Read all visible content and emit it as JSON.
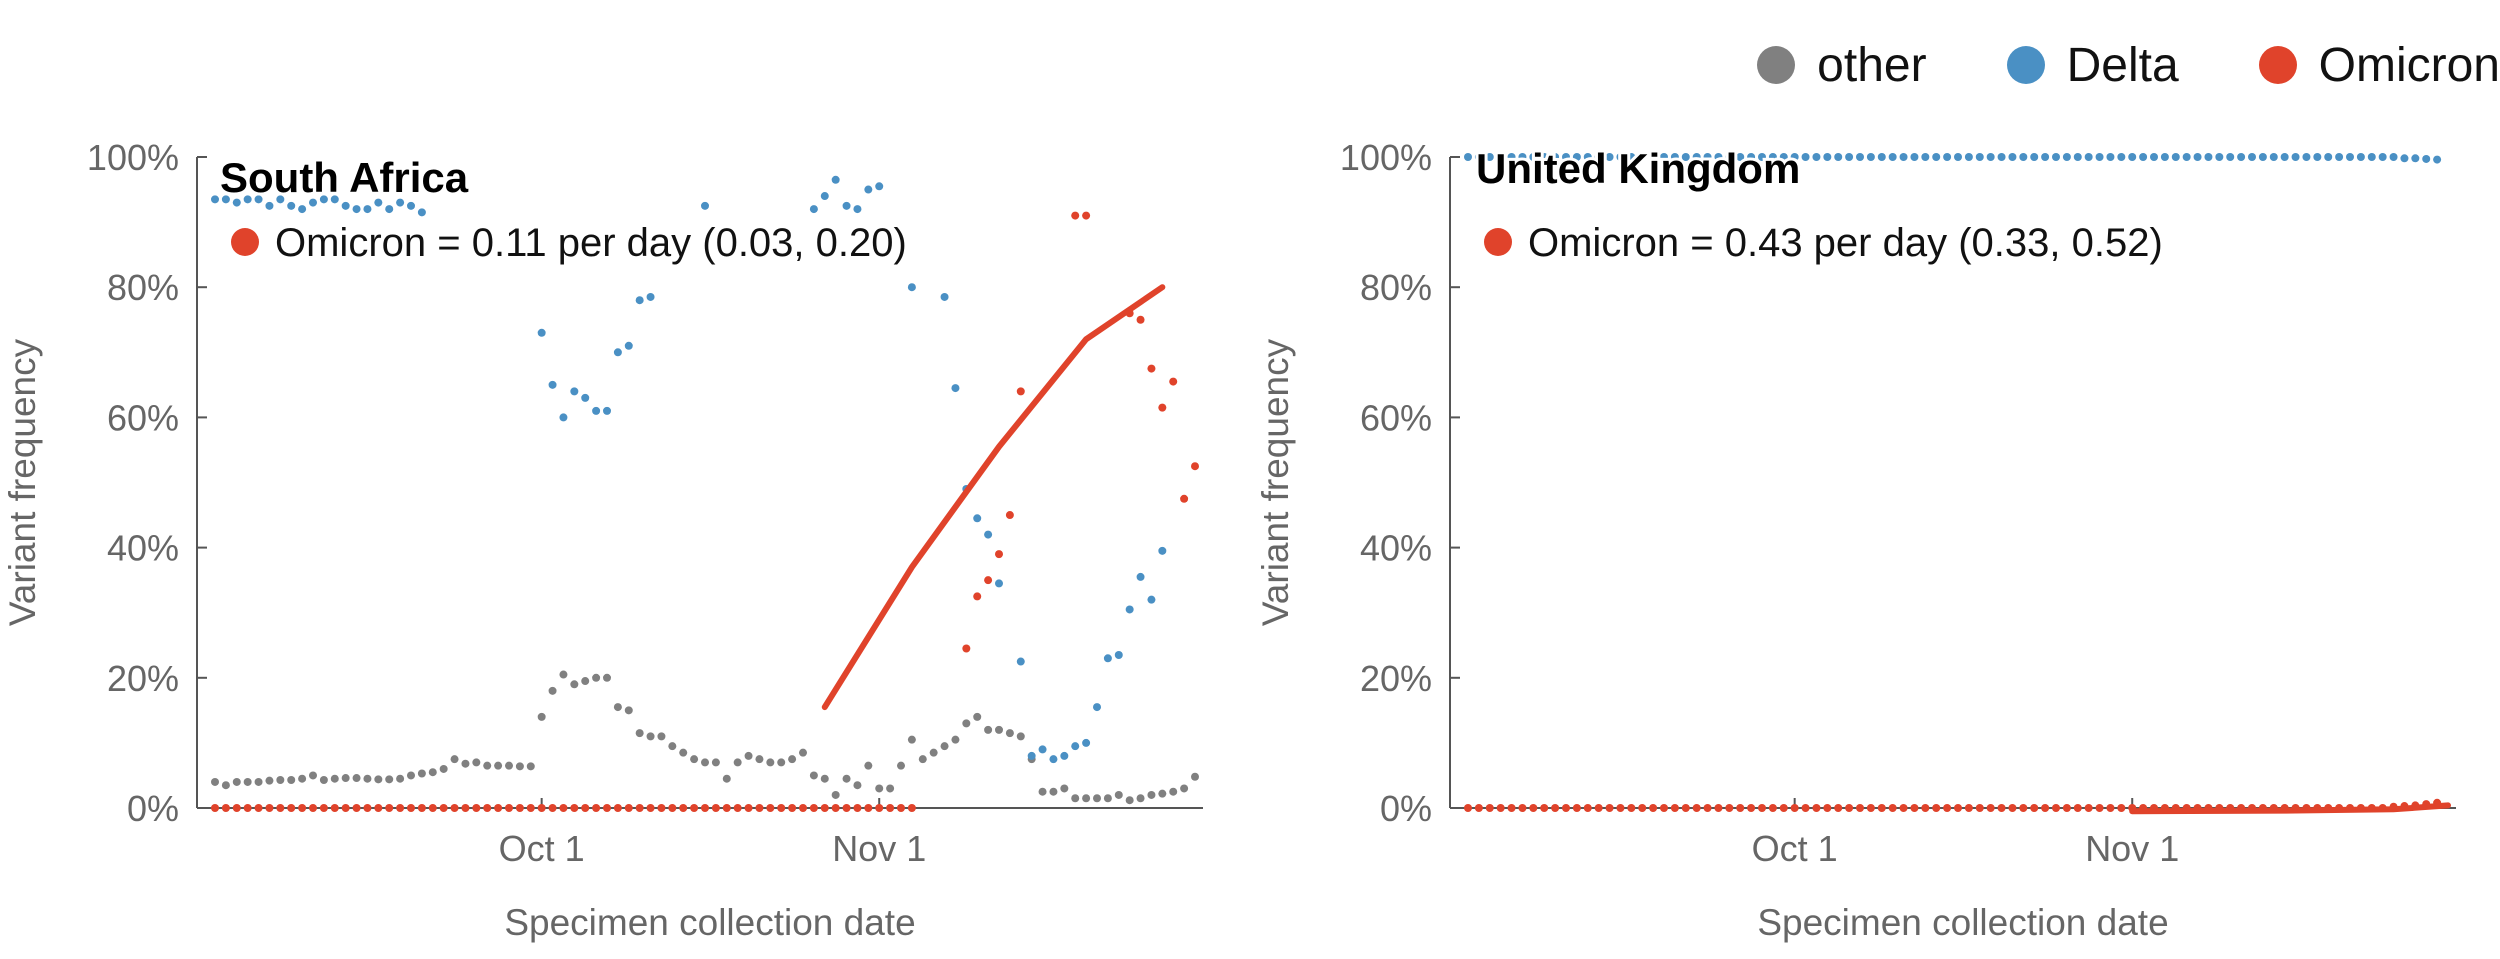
{
  "legend": {
    "items": [
      {
        "label": "other",
        "color": "#808080"
      },
      {
        "label": "Delta",
        "color": "#4a90c4"
      },
      {
        "label": "Omicron",
        "color": "#e0432b"
      }
    ]
  },
  "colors": {
    "other": "#808080",
    "Delta": "#4a90c4",
    "Omicron": "#e0432b",
    "axis": "#555555",
    "tick_label": "#666666"
  },
  "chart_data": [
    {
      "type": "scatter",
      "title": "South Africa",
      "annotation": "Omicron = 0.11 per day (0.03, 0.20)",
      "xlabel": "Specimen collection date",
      "ylabel": "Variant frequency",
      "xlim": [
        "2021-09-01",
        "2021-11-30"
      ],
      "ylim": [
        0,
        1
      ],
      "yticks": [
        0,
        0.2,
        0.4,
        0.6,
        0.8,
        1.0
      ],
      "ytick_labels": [
        "0%",
        "20%",
        "40%",
        "60%",
        "80%",
        "100%"
      ],
      "xticks": [
        "2021-10-01",
        "2021-11-01"
      ],
      "xtick_labels": [
        "Oct 1",
        "Nov 1"
      ],
      "grid": false,
      "x_start": "2021-09-01",
      "series": [
        {
          "name": "other",
          "values": [
            0.04,
            0.035,
            0.04,
            0.04,
            0.04,
            0.042,
            0.043,
            0.043,
            0.045,
            0.05,
            0.043,
            0.045,
            0.046,
            0.046,
            0.045,
            0.044,
            0.044,
            0.045,
            0.05,
            0.053,
            0.055,
            0.06,
            0.075,
            0.068,
            0.07,
            0.065,
            0.065,
            0.065,
            0.064,
            0.064,
            0.14,
            0.18,
            0.205,
            0.19,
            0.195,
            0.2,
            0.2,
            0.155,
            0.15,
            0.115,
            0.11,
            0.11,
            0.095,
            0.085,
            0.075,
            0.07,
            0.07,
            0.045,
            0.07,
            0.08,
            0.075,
            0.07,
            0.07,
            0.075,
            0.085,
            0.05,
            0.045,
            0.02,
            0.045,
            0.035,
            0.065,
            0.03,
            0.03,
            0.065,
            0.105,
            0.075,
            0.085,
            0.095,
            0.105,
            0.13,
            0.14,
            0.12,
            0.12,
            0.115,
            0.11,
            0.075,
            0.025,
            0.025,
            0.03,
            0.015,
            0.015,
            0.015,
            0.015,
            0.02,
            0.012,
            0.015,
            0.02,
            0.022,
            0.025,
            0.03,
            0.048
          ]
        },
        {
          "name": "Delta",
          "values": [
            0.935,
            0.935,
            0.93,
            0.935,
            0.935,
            0.925,
            0.935,
            0.925,
            0.92,
            0.93,
            0.935,
            0.935,
            0.925,
            0.92,
            0.92,
            0.93,
            0.92,
            0.93,
            0.925,
            0.915,
            null,
            null,
            null,
            null,
            null,
            null,
            null,
            null,
            null,
            null,
            0.73,
            0.65,
            0.6,
            0.64,
            0.63,
            0.61,
            0.61,
            0.7,
            0.71,
            0.78,
            0.785,
            null,
            null,
            null,
            null,
            0.925,
            null,
            null,
            null,
            null,
            null,
            null,
            null,
            null,
            null,
            0.92,
            0.94,
            0.965,
            0.925,
            0.92,
            0.95,
            0.955,
            null,
            null,
            0.8,
            null,
            null,
            0.785,
            0.645,
            0.49,
            0.445,
            0.42,
            0.345,
            null,
            0.225,
            0.08,
            0.09,
            0.075,
            0.08,
            0.095,
            0.1,
            0.155,
            0.23,
            0.235,
            0.305,
            0.355,
            0.32,
            0.395
          ]
        },
        {
          "name": "Omicron",
          "values": [
            0.0,
            0.0,
            0.0,
            0.0,
            0.0,
            0.0,
            0.0,
            0.0,
            0.0,
            0.0,
            0.0,
            0.0,
            0.0,
            0.0,
            0.0,
            0.0,
            0.0,
            0.0,
            0.0,
            0.0,
            0.0,
            0.0,
            0.0,
            0.0,
            0.0,
            0.0,
            0.0,
            0.0,
            0.0,
            0.0,
            0.0,
            0.0,
            0.0,
            0.0,
            0.0,
            0.0,
            0.0,
            0.0,
            0.0,
            0.0,
            0.0,
            0.0,
            0.0,
            0.0,
            0.0,
            0.0,
            0.0,
            0.0,
            0.0,
            0.0,
            0.0,
            0.0,
            0.0,
            0.0,
            0.0,
            0.0,
            0.0,
            0.0,
            0.0,
            0.0,
            0.0,
            0.0,
            0.0,
            0.0,
            0.0,
            null,
            null,
            null,
            null,
            0.245,
            0.325,
            0.35,
            0.39,
            0.45,
            0.64,
            null,
            null,
            null,
            null,
            0.91,
            0.91,
            null,
            null,
            null,
            0.76,
            0.75,
            0.675,
            0.615,
            0.655,
            0.475,
            0.525
          ]
        }
      ],
      "fit": {
        "name": "Omicron",
        "x": [
          "2021-10-27",
          "2021-11-04",
          "2021-11-12",
          "2021-11-20",
          "2021-11-27"
        ],
        "y": [
          0.155,
          0.37,
          0.555,
          0.72,
          0.8
        ]
      }
    },
    {
      "type": "scatter",
      "title": "United Kingdom",
      "annotation": "Omicron = 0.43 per day (0.33, 0.52)",
      "xlabel": "Specimen collection date",
      "ylabel": "Variant frequency",
      "xlim": [
        "2021-09-01",
        "2021-11-30"
      ],
      "ylim": [
        0,
        1
      ],
      "yticks": [
        0,
        0.2,
        0.4,
        0.6,
        0.8,
        1.0
      ],
      "ytick_labels": [
        "0%",
        "20%",
        "40%",
        "60%",
        "80%",
        "100%"
      ],
      "xticks": [
        "2021-10-01",
        "2021-11-01"
      ],
      "xtick_labels": [
        "Oct 1",
        "Nov 1"
      ],
      "grid": false,
      "x_start": "2021-09-01",
      "series": [
        {
          "name": "Delta",
          "values": [
            1,
            1,
            1,
            1,
            1,
            1,
            1,
            1,
            1,
            1,
            1,
            1,
            1,
            1,
            1,
            1,
            1,
            1,
            1,
            1,
            1,
            1,
            1,
            1,
            1,
            1,
            1,
            1,
            1,
            1,
            1,
            1,
            1,
            1,
            1,
            1,
            1,
            1,
            1,
            1,
            1,
            1,
            1,
            1,
            1,
            1,
            1,
            1,
            1,
            1,
            1,
            1,
            1,
            1,
            1,
            1,
            1,
            1,
            1,
            1,
            1,
            1,
            1,
            1,
            1,
            1,
            1,
            1,
            1,
            1,
            1,
            1,
            1,
            1,
            1,
            1,
            1,
            1,
            1,
            1,
            1,
            1,
            1,
            1,
            1,
            1,
            0.998,
            0.998,
            0.997,
            0.996
          ]
        },
        {
          "name": "Omicron",
          "values": [
            0,
            0,
            0,
            0,
            0,
            0,
            0,
            0,
            0,
            0,
            0,
            0,
            0,
            0,
            0,
            0,
            0,
            0,
            0,
            0,
            0,
            0,
            0,
            0,
            0,
            0,
            0,
            0,
            0,
            0,
            0,
            0,
            0,
            0,
            0,
            0,
            0,
            0,
            0,
            0,
            0,
            0,
            0,
            0,
            0,
            0,
            0,
            0,
            0,
            0,
            0,
            0,
            0,
            0,
            0,
            0,
            0,
            0,
            0,
            0,
            0,
            0,
            0,
            0,
            0,
            0,
            0,
            0,
            0,
            0,
            0,
            0,
            0,
            0,
            0,
            0,
            0,
            0,
            0,
            0,
            0,
            0,
            0,
            0,
            0,
            0.002,
            0.003,
            0.004,
            0.006,
            0.008
          ]
        }
      ],
      "fit": {
        "name": "Omicron",
        "x": [
          "2021-11-01",
          "2021-11-15",
          "2021-11-25",
          "2021-11-30"
        ],
        "y": [
          -0.005,
          -0.004,
          -0.002,
          0.004
        ]
      }
    }
  ]
}
